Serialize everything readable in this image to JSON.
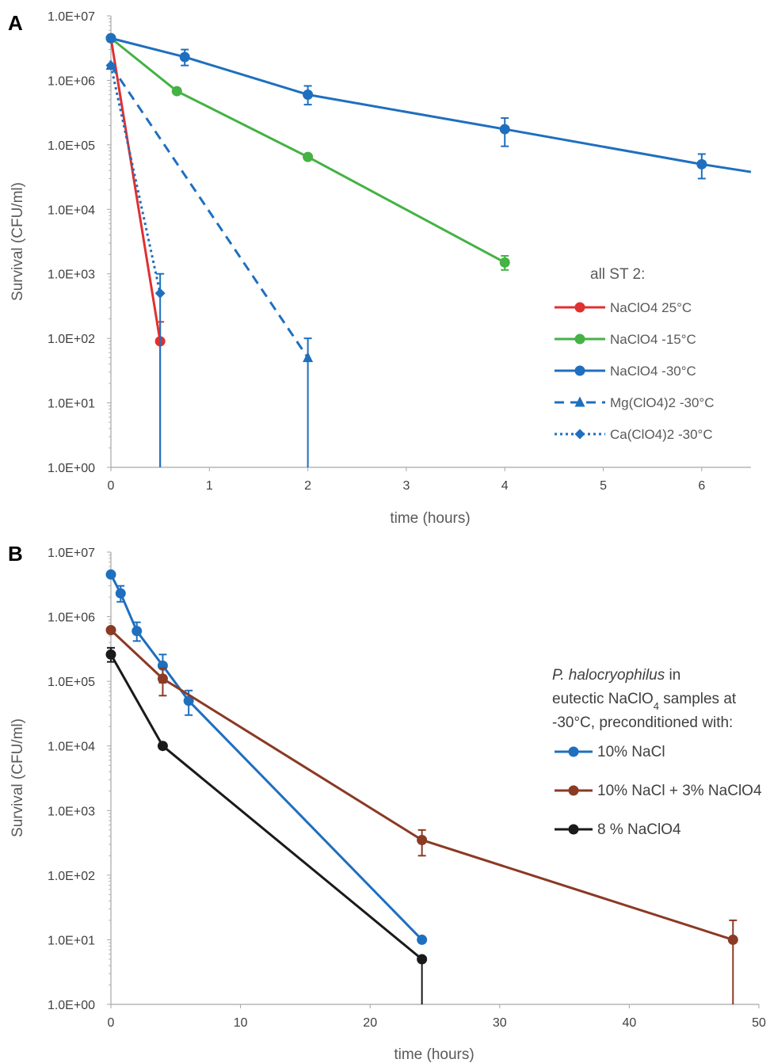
{
  "chart_data": [
    {
      "type": "line",
      "panel_label": "A",
      "xlabel": "time (hours)",
      "ylabel": "Survival (CFU/ml)",
      "yscale": "log",
      "xlim": [
        0,
        6.5
      ],
      "ylim": [
        1,
        10000000
      ],
      "x_ticks": [
        "0",
        "1",
        "2",
        "3",
        "4",
        "5",
        "6"
      ],
      "y_ticks": [
        "1.0E+00",
        "1.0E+01",
        "1.0E+02",
        "1.0E+03",
        "1.0E+04",
        "1.0E+05",
        "1.0E+06",
        "1.0E+07"
      ],
      "legend_title": "all ST 2:",
      "legend_position": "right",
      "grid": false,
      "series": [
        {
          "name": "NaClO4 25°C",
          "color": "#e03030",
          "marker": "circle",
          "dash": "solid",
          "points": [
            {
              "x": 0,
              "y": 4500000
            },
            {
              "x": 0.5,
              "y": 90,
              "err_low": 1,
              "err_high": 180
            }
          ]
        },
        {
          "name": "NaClO4 -15°C",
          "color": "#44b244",
          "marker": "circle",
          "dash": "solid",
          "points": [
            {
              "x": 0,
              "y": 4500000
            },
            {
              "x": 0.67,
              "y": 680000
            },
            {
              "x": 2,
              "y": 65000
            },
            {
              "x": 4,
              "y": 1500,
              "err_low": 1150,
              "err_high": 1900
            }
          ]
        },
        {
          "name": "NaClO4 -30°C",
          "color": "#1f6fbf",
          "marker": "circle",
          "dash": "solid",
          "points": [
            {
              "x": 0,
              "y": 4500000
            },
            {
              "x": 0.75,
              "y": 2300000,
              "err_low": 1700000,
              "err_high": 3000000
            },
            {
              "x": 2,
              "y": 600000,
              "err_low": 420000,
              "err_high": 820000
            },
            {
              "x": 4,
              "y": 175000,
              "err_low": 95000,
              "err_high": 260000
            },
            {
              "x": 6,
              "y": 50000,
              "err_low": 30000,
              "err_high": 72000
            },
            {
              "x": 6.5,
              "y": 38000
            }
          ]
        },
        {
          "name": "Mg(ClO4)2 -30°C",
          "color": "#1f6fbf",
          "marker": "triangle",
          "dash": "dashed",
          "points": [
            {
              "x": 0,
              "y": 1700000
            },
            {
              "x": 2,
              "y": 50,
              "err_low": 1,
              "err_high": 100
            }
          ]
        },
        {
          "name": "Ca(ClO4)2 -30°C",
          "color": "#1f6fbf",
          "marker": "diamond",
          "dash": "dotted",
          "points": [
            {
              "x": 0,
              "y": 1700000
            },
            {
              "x": 0.5,
              "y": 500,
              "err_low": 1,
              "err_high": 1000
            }
          ]
        }
      ]
    },
    {
      "type": "line",
      "panel_label": "B",
      "xlabel": "time (hours)",
      "ylabel": "Survival (CFU/ml)",
      "yscale": "log",
      "xlim": [
        0,
        50
      ],
      "ylim": [
        1,
        10000000
      ],
      "x_ticks": [
        "0",
        "10",
        "20",
        "30",
        "40",
        "50"
      ],
      "y_ticks": [
        "1.0E+00",
        "1.0E+01",
        "1.0E+02",
        "1.0E+03",
        "1.0E+04",
        "1.0E+05",
        "1.0E+06",
        "1.0E+07"
      ],
      "legend_title_italic": "P. halocryophilus",
      "legend_title_rest": " in",
      "legend_title_line2": "eutectic NaClO",
      "legend_title_line2_sub": "4",
      "legend_title_line2_rest": " samples at",
      "legend_title_line3": "-30°C, preconditioned with:",
      "legend_position": "right",
      "grid": false,
      "series": [
        {
          "name": "10% NaCl",
          "color": "#1f6fbf",
          "marker": "circle",
          "points": [
            {
              "x": 0,
              "y": 4500000
            },
            {
              "x": 0.75,
              "y": 2300000,
              "err_low": 1700000,
              "err_high": 3000000
            },
            {
              "x": 2,
              "y": 600000,
              "err_low": 420000,
              "err_high": 820000
            },
            {
              "x": 4,
              "y": 175000,
              "err_low": 95000,
              "err_high": 260000
            },
            {
              "x": 6,
              "y": 50000,
              "err_low": 30000,
              "err_high": 72000
            },
            {
              "x": 24,
              "y": 10
            }
          ]
        },
        {
          "name": "10% NaCl + 3% NaClO4",
          "color": "#8b3a24",
          "marker": "circle",
          "points": [
            {
              "x": 0,
              "y": 620000
            },
            {
              "x": 4,
              "y": 110000,
              "err_low": 60000,
              "err_high": 160000
            },
            {
              "x": 24,
              "y": 350,
              "err_low": 200,
              "err_high": 500
            },
            {
              "x": 48,
              "y": 10,
              "err_low": 1,
              "err_high": 20
            }
          ]
        },
        {
          "name": "8 % NaClO4",
          "color": "#1a1a1a",
          "marker": "circle",
          "points": [
            {
              "x": 0,
              "y": 260000,
              "err_low": 200000,
              "err_high": 330000
            },
            {
              "x": 4,
              "y": 10000
            },
            {
              "x": 24,
              "y": 5,
              "err_low": 1,
              "err_high": 5
            }
          ]
        }
      ]
    }
  ]
}
